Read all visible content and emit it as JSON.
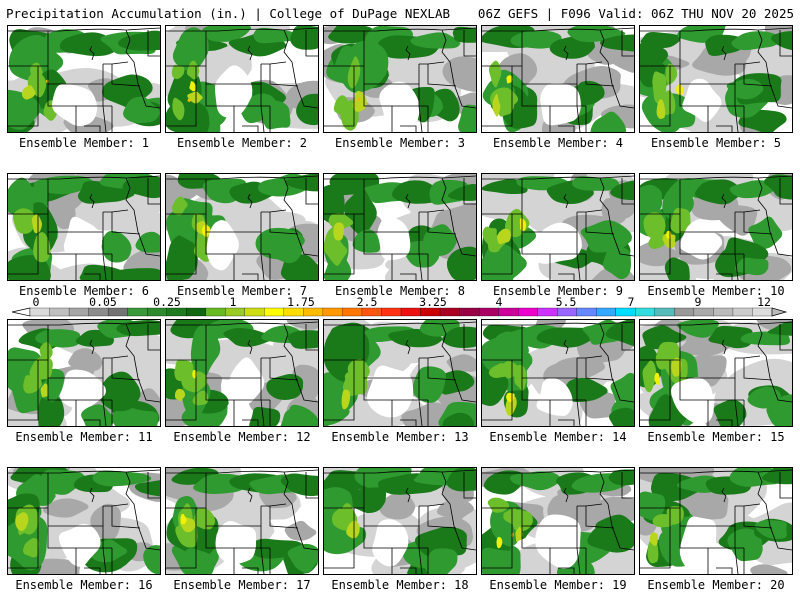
{
  "header": {
    "title_left": "Precipitation Accumulation (in.) | College of DuPage NEXLAB",
    "title_right": "06Z GEFS | F096 Valid: 06Z THU NOV 20 2025"
  },
  "members": [
    {
      "label": "Ensemble Member: 1"
    },
    {
      "label": "Ensemble Member: 2"
    },
    {
      "label": "Ensemble Member: 3"
    },
    {
      "label": "Ensemble Member: 4"
    },
    {
      "label": "Ensemble Member: 5"
    },
    {
      "label": "Ensemble Member: 6"
    },
    {
      "label": "Ensemble Member: 7"
    },
    {
      "label": "Ensemble Member: 8"
    },
    {
      "label": "Ensemble Member: 9"
    },
    {
      "label": "Ensemble Member: 10"
    },
    {
      "label": "Ensemble Member: 11"
    },
    {
      "label": "Ensemble Member: 12"
    },
    {
      "label": "Ensemble Member: 13"
    },
    {
      "label": "Ensemble Member: 14"
    },
    {
      "label": "Ensemble Member: 15"
    },
    {
      "label": "Ensemble Member: 16"
    },
    {
      "label": "Ensemble Member: 17"
    },
    {
      "label": "Ensemble Member: 18"
    },
    {
      "label": "Ensemble Member: 19"
    },
    {
      "label": "Ensemble Member: 20"
    }
  ],
  "colorbar": {
    "tick_labels": [
      "0",
      "0.05",
      "0.25",
      "1",
      "1.75",
      "2.5",
      "3.25",
      "4",
      "5.5",
      "7",
      "9",
      "12"
    ],
    "colors": [
      "#d9d9d9",
      "#bfbfbf",
      "#a6a6a6",
      "#8c8c8c",
      "#737373",
      "#3a9a3a",
      "#2f8a2f",
      "#1f7a1f",
      "#116611",
      "#66bb22",
      "#99cc22",
      "#ccdd11",
      "#ffff00",
      "#ffdd00",
      "#ffbb00",
      "#ff9900",
      "#ff7700",
      "#ff5511",
      "#ff3311",
      "#ee1111",
      "#cc0000",
      "#aa0022",
      "#990044",
      "#aa0066",
      "#cc0099",
      "#ee00cc",
      "#cc33ff",
      "#9966ff",
      "#6688ff",
      "#33aaff",
      "#00ddff",
      "#33dddd",
      "#55bbbb",
      "#999999",
      "#aaaaaa",
      "#bbbbbb",
      "#cccccc",
      "#dddddd"
    ],
    "map_colors": {
      "light_gray": "#d4d4d4",
      "mid_gray": "#a8a8a8",
      "dark_green": "#1a7a1a",
      "green": "#2f9a2f",
      "light_green": "#6cbf2a",
      "yellow_green": "#b8d61e",
      "yellow": "#f2f200",
      "orange": "#f5b800",
      "boundary": "#000000"
    }
  }
}
